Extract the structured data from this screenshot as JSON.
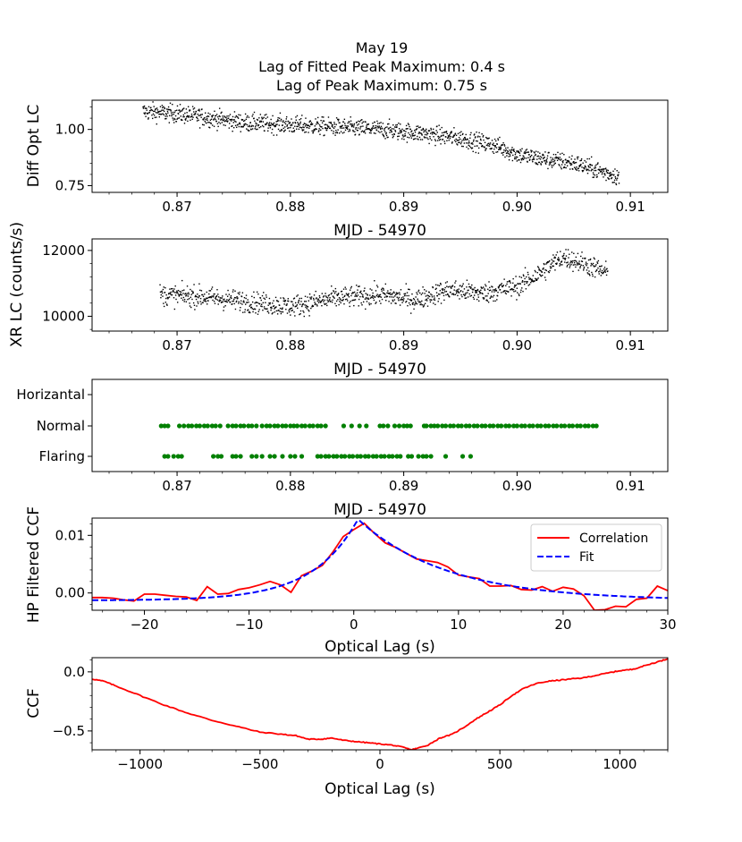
{
  "figure": {
    "title_lines": [
      "May 19",
      "Lag of Fitted Peak Maximum: 0.4 s",
      "Lag of Peak Maximum: 0.75 s"
    ]
  },
  "chart_data": [
    {
      "id": "optical",
      "type": "scatter",
      "ylabel": "Diff Opt LC",
      "xlabel": "MJD - 54970",
      "xlim": [
        0.8625,
        0.9133
      ],
      "ylim": [
        0.72,
        1.13
      ],
      "xticks": [
        0.87,
        0.88,
        0.89,
        0.9,
        0.91
      ],
      "xticklabels": [
        "0.87",
        "0.88",
        "0.89",
        "0.90",
        "0.91"
      ],
      "yticks": [
        0.75,
        1.0
      ],
      "yticklabels": [
        "0.75",
        "1.00"
      ],
      "color": "#000000",
      "trend": {
        "x": [
          0.867,
          0.87,
          0.873,
          0.876,
          0.88,
          0.884,
          0.888,
          0.892,
          0.895,
          0.898,
          0.9,
          0.902,
          0.905,
          0.907,
          0.909
        ],
        "y": [
          1.08,
          1.07,
          1.05,
          1.03,
          1.02,
          1.01,
          1.0,
          0.98,
          0.96,
          0.93,
          0.89,
          0.87,
          0.85,
          0.82,
          0.79
        ],
        "scatter": 0.02,
        "n_points": 1400
      }
    },
    {
      "id": "xray",
      "type": "scatter",
      "ylabel": "XR LC (counts/s)",
      "xlabel": "MJD - 54970",
      "xlim": [
        0.8625,
        0.9133
      ],
      "ylim": [
        9550,
        12350
      ],
      "xticks": [
        0.87,
        0.88,
        0.89,
        0.9,
        0.91
      ],
      "xticklabels": [
        "0.87",
        "0.88",
        "0.89",
        "0.90",
        "0.91"
      ],
      "yticks": [
        10000,
        12000
      ],
      "yticklabels": [
        "10000",
        "12000"
      ],
      "color": "#000000",
      "trend": {
        "x": [
          0.8685,
          0.872,
          0.876,
          0.88,
          0.884,
          0.888,
          0.891,
          0.894,
          0.897,
          0.9,
          0.902,
          0.904,
          0.906,
          0.908
        ],
        "y": [
          10650,
          10600,
          10450,
          10300,
          10550,
          10650,
          10500,
          10800,
          10700,
          10900,
          11300,
          11800,
          11600,
          11300
        ],
        "scatter": 160,
        "n_points": 1200
      }
    },
    {
      "id": "states",
      "type": "scatter",
      "xlabel": "MJD - 54970",
      "xlim": [
        0.8625,
        0.9133
      ],
      "xticks": [
        0.87,
        0.88,
        0.89,
        0.9,
        0.91
      ],
      "xticklabels": [
        "0.87",
        "0.88",
        "0.89",
        "0.90",
        "0.91"
      ],
      "categories": [
        "Horizantal",
        "Normal",
        "Flaring"
      ],
      "color": "#008000",
      "normal_x": [
        0.8686,
        0.8689,
        0.8692,
        0.8702,
        0.8706,
        0.871,
        0.8713,
        0.8717,
        0.872,
        0.8724,
        0.8727,
        0.8731,
        0.8734,
        0.8738,
        0.8745,
        0.8749,
        0.8752,
        0.8756,
        0.8759,
        0.8763,
        0.8766,
        0.877,
        0.8775,
        0.8779,
        0.8782,
        0.8786,
        0.8789,
        0.8793,
        0.8796,
        0.88,
        0.8803,
        0.8806,
        0.881,
        0.8813,
        0.8817,
        0.882,
        0.8824,
        0.8827,
        0.8831,
        0.8847,
        0.8854,
        0.8861,
        0.8867,
        0.8879,
        0.8882,
        0.8886,
        0.8892,
        0.8896,
        0.89,
        0.8903,
        0.8906,
        0.8918,
        0.892,
        0.8924,
        0.8927,
        0.893,
        0.8934,
        0.8937,
        0.8941,
        0.8944,
        0.8948,
        0.8951,
        0.8955,
        0.8958,
        0.8962,
        0.8965,
        0.8969,
        0.8972,
        0.8976,
        0.8979,
        0.8983,
        0.8986,
        0.899,
        0.8993,
        0.8997,
        0.9,
        0.9004,
        0.9007,
        0.9011,
        0.9014,
        0.9018,
        0.9021,
        0.9025,
        0.9028,
        0.9032,
        0.9035,
        0.9039,
        0.9042,
        0.9046,
        0.9049,
        0.9053,
        0.9056,
        0.906,
        0.9063,
        0.9067,
        0.907
      ],
      "flaring_x": [
        0.8689,
        0.8692,
        0.8697,
        0.8701,
        0.8704,
        0.8732,
        0.8736,
        0.8739,
        0.8749,
        0.8752,
        0.8756,
        0.8766,
        0.877,
        0.8775,
        0.8782,
        0.8786,
        0.8793,
        0.88,
        0.8804,
        0.881,
        0.8824,
        0.8827,
        0.8831,
        0.8834,
        0.8838,
        0.8841,
        0.8845,
        0.8848,
        0.8852,
        0.8855,
        0.8859,
        0.8862,
        0.8866,
        0.8869,
        0.8873,
        0.8876,
        0.888,
        0.8883,
        0.8887,
        0.889,
        0.8894,
        0.8897,
        0.8904,
        0.8907,
        0.8913,
        0.8917,
        0.892,
        0.8924,
        0.8937,
        0.8952,
        0.8959
      ]
    },
    {
      "id": "hp_ccf",
      "type": "line",
      "ylabel": "HP Filtered CCF",
      "xlabel": "Optical Lag (s)",
      "xlim": [
        -25,
        30
      ],
      "ylim": [
        -0.003,
        0.013
      ],
      "xticks": [
        -20,
        -10,
        0,
        10,
        20,
        30
      ],
      "xticklabels": [
        "−20",
        "−10",
        "0",
        "10",
        "20",
        "30"
      ],
      "yticks": [
        0.0,
        0.01
      ],
      "yticklabels": [
        "0.00",
        "0.01"
      ],
      "legend": {
        "placement": "upper-right",
        "entries": [
          "Correlation",
          "Fit"
        ]
      },
      "series": [
        {
          "name": "Correlation",
          "color": "#ff0000",
          "style": "solid",
          "x": [
            -25,
            -24,
            -23,
            -22,
            -21,
            -20,
            -19,
            -18,
            -17,
            -16,
            -15,
            -14,
            -13,
            -12,
            -11,
            -10,
            -9,
            -8,
            -7,
            -6,
            -5,
            -4,
            -3,
            -2,
            -1,
            0,
            1,
            2,
            3,
            4,
            5,
            6,
            7,
            8,
            9,
            10,
            11,
            12,
            13,
            14,
            15,
            16,
            17,
            18,
            19,
            20,
            21,
            22,
            23,
            24,
            25,
            26,
            27,
            28,
            29,
            30
          ],
          "y": [
            -0.0008,
            -0.0008,
            -0.0009,
            -0.0012,
            -0.0014,
            -0.0002,
            -0.0002,
            -0.0004,
            -0.0006,
            -0.0007,
            -0.0013,
            0.0011,
            -0.0002,
            -0.0001,
            0.0006,
            0.0009,
            0.0014,
            0.002,
            0.0014,
            0.0001,
            0.003,
            0.0038,
            0.0048,
            0.0071,
            0.0098,
            0.011,
            0.0121,
            0.0103,
            0.0087,
            0.0079,
            0.0069,
            0.0059,
            0.0056,
            0.0053,
            0.0045,
            0.0031,
            0.0028,
            0.0025,
            0.0012,
            0.0012,
            0.0013,
            0.0006,
            0.0005,
            0.0011,
            0.0003,
            0.001,
            0.0007,
            -0.0005,
            -0.003,
            -0.0029,
            -0.0023,
            -0.0024,
            -0.0011,
            -0.0009,
            0.0012,
            0.0004
          ]
        },
        {
          "name": "Fit",
          "color": "#0000ff",
          "style": "dashed",
          "model": {
            "kind": "double-exponential",
            "peak_lag": 0.4,
            "amplitude": 0.0128,
            "baseline": -0.0013,
            "tau_left": 4.3,
            "tau_right": 8.5
          }
        }
      ]
    },
    {
      "id": "ccf",
      "type": "line",
      "ylabel": "CCF",
      "xlabel": "Optical Lag (s)",
      "xlim": [
        -1200,
        1200
      ],
      "ylim": [
        -0.66,
        0.12
      ],
      "xticks": [
        -1000,
        -500,
        0,
        500,
        1000
      ],
      "xticklabels": [
        "−1000",
        "−500",
        "0",
        "500",
        "1000"
      ],
      "yticks": [
        -0.5,
        0.0
      ],
      "yticklabels": [
        "−0.5",
        "0.0"
      ],
      "series": [
        {
          "name": "CCF",
          "color": "#ff0000",
          "x": [
            -1200,
            -1150,
            -1100,
            -1000,
            -900,
            -800,
            -700,
            -600,
            -500,
            -400,
            -350,
            -300,
            -250,
            -200,
            -150,
            -100,
            -50,
            0,
            50,
            100,
            130,
            150,
            200,
            250,
            300,
            350,
            400,
            450,
            500,
            550,
            600,
            650,
            700,
            750,
            800,
            850,
            900,
            950,
            1000,
            1050,
            1100,
            1150,
            1200
          ],
          "y": [
            -0.06,
            -0.08,
            -0.12,
            -0.2,
            -0.28,
            -0.35,
            -0.41,
            -0.46,
            -0.51,
            -0.53,
            -0.54,
            -0.57,
            -0.57,
            -0.56,
            -0.58,
            -0.59,
            -0.6,
            -0.61,
            -0.62,
            -0.64,
            -0.66,
            -0.65,
            -0.62,
            -0.56,
            -0.53,
            -0.47,
            -0.4,
            -0.34,
            -0.28,
            -0.2,
            -0.14,
            -0.1,
            -0.08,
            -0.07,
            -0.06,
            -0.05,
            -0.03,
            -0.01,
            0.01,
            0.02,
            0.05,
            0.08,
            0.11
          ]
        }
      ]
    }
  ]
}
